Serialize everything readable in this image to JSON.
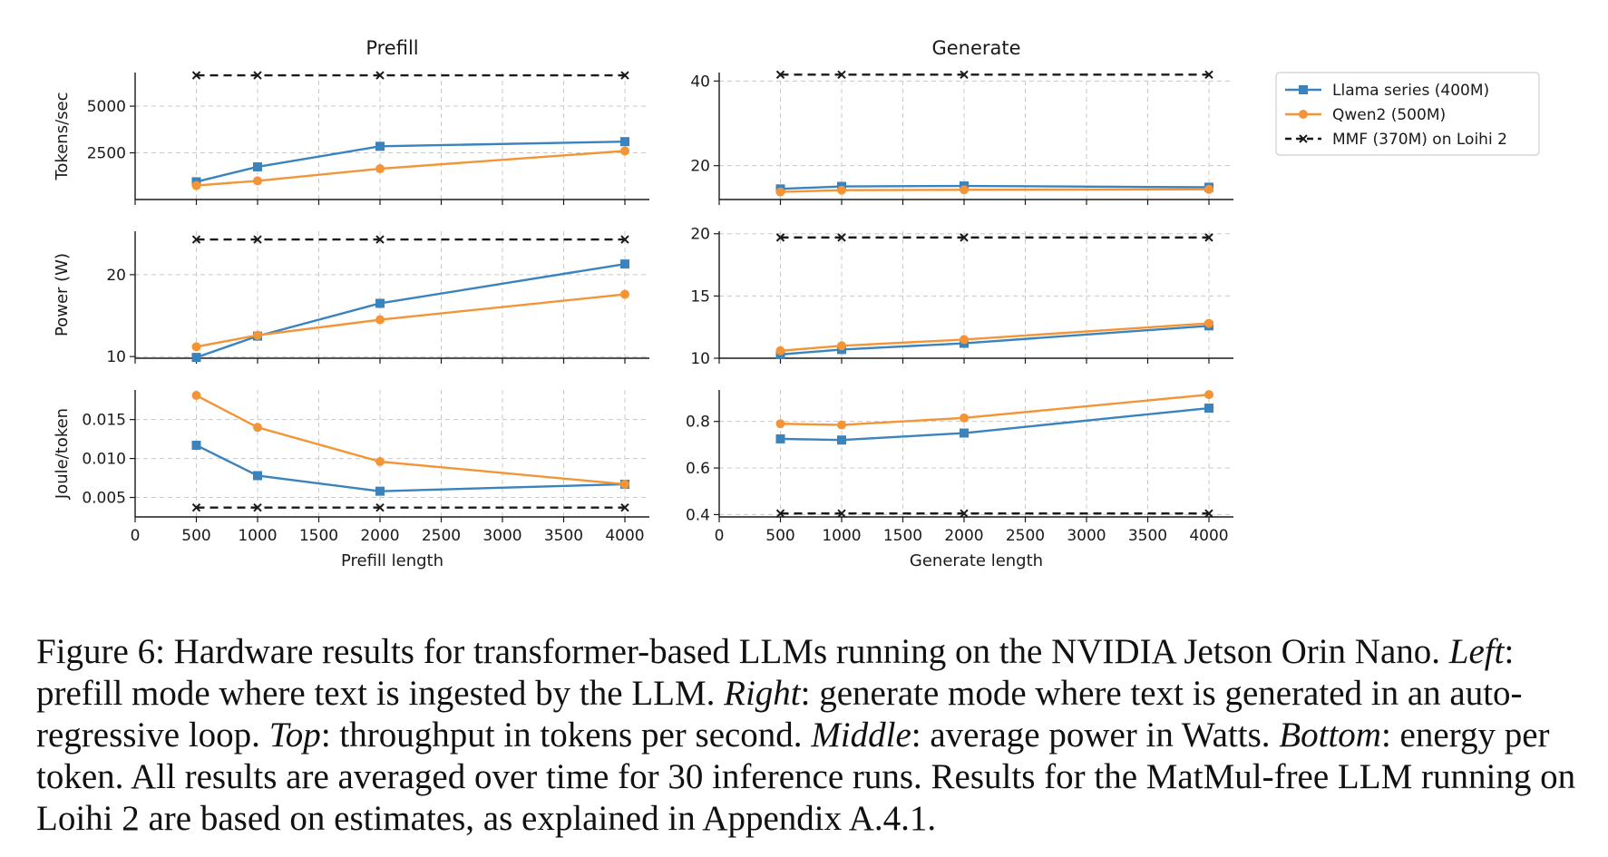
{
  "chart_data": [
    {
      "type": "line",
      "panel": "prefill-tokens",
      "title": "Prefill",
      "xlabel": "",
      "ylabel": "Tokens/sec",
      "xlim": [
        0,
        4200
      ],
      "ylim": [
        0,
        6800
      ],
      "grid": true,
      "x_ticks": [],
      "y_ticks": [
        2500,
        5000
      ],
      "series": [
        {
          "name": "Llama series (400M)",
          "x": [
            500,
            1000,
            2000,
            4000
          ],
          "values": [
            950,
            1750,
            2850,
            3100
          ]
        },
        {
          "name": "Qwen2 (500M)",
          "x": [
            500,
            1000,
            2000,
            4000
          ],
          "values": [
            750,
            1000,
            1650,
            2600
          ]
        },
        {
          "name": "MMF (370M) on Loihi 2",
          "x": [
            500,
            1000,
            2000,
            4000
          ],
          "values": [
            6650,
            6650,
            6650,
            6650
          ]
        }
      ]
    },
    {
      "type": "line",
      "panel": "generate-tokens",
      "title": "Generate",
      "xlabel": "",
      "ylabel": "",
      "xlim": [
        0,
        4200
      ],
      "ylim": [
        12,
        42
      ],
      "grid": true,
      "x_ticks": [],
      "y_ticks": [
        20,
        40
      ],
      "series": [
        {
          "name": "Llama series (400M)",
          "x": [
            500,
            1000,
            2000,
            4000
          ],
          "values": [
            14.5,
            15.1,
            15.2,
            14.9
          ]
        },
        {
          "name": "Qwen2 (500M)",
          "x": [
            500,
            1000,
            2000,
            4000
          ],
          "values": [
            13.8,
            14.2,
            14.3,
            14.4
          ]
        },
        {
          "name": "MMF (370M) on Loihi 2",
          "x": [
            500,
            1000,
            2000,
            4000
          ],
          "values": [
            41.5,
            41.5,
            41.5,
            41.5
          ]
        }
      ]
    },
    {
      "type": "line",
      "panel": "prefill-power",
      "title": "",
      "xlabel": "",
      "ylabel": "Power (W)",
      "xlim": [
        0,
        4200
      ],
      "ylim": [
        9.8,
        25.3
      ],
      "grid": true,
      "x_ticks": [],
      "y_ticks": [
        10,
        20
      ],
      "series": [
        {
          "name": "Llama series (400M)",
          "x": [
            500,
            1000,
            2000,
            4000
          ],
          "values": [
            9.9,
            12.5,
            16.5,
            21.3
          ]
        },
        {
          "name": "Qwen2 (500M)",
          "x": [
            500,
            1000,
            2000,
            4000
          ],
          "values": [
            11.2,
            12.6,
            14.5,
            17.6
          ]
        },
        {
          "name": "MMF (370M) on Loihi 2",
          "x": [
            500,
            1000,
            2000,
            4000
          ],
          "values": [
            24.3,
            24.3,
            24.3,
            24.3
          ]
        }
      ]
    },
    {
      "type": "line",
      "panel": "generate-power",
      "title": "",
      "xlabel": "",
      "ylabel": "",
      "xlim": [
        0,
        4200
      ],
      "ylim": [
        10,
        20.2
      ],
      "grid": true,
      "x_ticks": [],
      "y_ticks": [
        10,
        15,
        20
      ],
      "series": [
        {
          "name": "Llama series (400M)",
          "x": [
            500,
            1000,
            2000,
            4000
          ],
          "values": [
            10.3,
            10.7,
            11.2,
            12.6
          ]
        },
        {
          "name": "Qwen2 (500M)",
          "x": [
            500,
            1000,
            2000,
            4000
          ],
          "values": [
            10.6,
            11.0,
            11.5,
            12.8
          ]
        },
        {
          "name": "MMF (370M) on Loihi 2",
          "x": [
            500,
            1000,
            2000,
            4000
          ],
          "values": [
            19.7,
            19.7,
            19.7,
            19.7
          ]
        }
      ]
    },
    {
      "type": "line",
      "panel": "prefill-energy",
      "title": "",
      "xlabel": "Prefill length",
      "ylabel": "Joule/token",
      "xlim": [
        0,
        4200
      ],
      "ylim": [
        0.0025,
        0.0188
      ],
      "grid": true,
      "x_ticks": [
        0,
        500,
        1000,
        1500,
        2000,
        2500,
        3000,
        3500,
        4000
      ],
      "y_ticks": [
        0.005,
        0.01,
        0.015
      ],
      "y_tick_labels": [
        "0.005",
        "0.010",
        "0.015"
      ],
      "series": [
        {
          "name": "Llama series (400M)",
          "x": [
            500,
            1000,
            2000,
            4000
          ],
          "values": [
            0.0117,
            0.0078,
            0.0058,
            0.0067
          ]
        },
        {
          "name": "Qwen2 (500M)",
          "x": [
            500,
            1000,
            2000,
            4000
          ],
          "values": [
            0.0181,
            0.014,
            0.0096,
            0.0067
          ]
        },
        {
          "name": "MMF (370M) on Loihi 2",
          "x": [
            500,
            1000,
            2000,
            4000
          ],
          "values": [
            0.0037,
            0.0037,
            0.0037,
            0.0037
          ]
        }
      ]
    },
    {
      "type": "line",
      "panel": "generate-energy",
      "title": "",
      "xlabel": "Generate length",
      "ylabel": "",
      "xlim": [
        0,
        4200
      ],
      "ylim": [
        0.39,
        0.935
      ],
      "grid": true,
      "x_ticks": [
        0,
        500,
        1000,
        1500,
        2000,
        2500,
        3000,
        3500,
        4000
      ],
      "y_ticks": [
        0.4,
        0.6,
        0.8
      ],
      "y_tick_labels": [
        "0.4",
        "0.6",
        "0.8"
      ],
      "series": [
        {
          "name": "Llama series (400M)",
          "x": [
            500,
            1000,
            2000,
            4000
          ],
          "values": [
            0.725,
            0.72,
            0.75,
            0.857
          ]
        },
        {
          "name": "Qwen2 (500M)",
          "x": [
            500,
            1000,
            2000,
            4000
          ],
          "values": [
            0.79,
            0.785,
            0.815,
            0.915
          ]
        },
        {
          "name": "MMF (370M) on Loihi 2",
          "x": [
            500,
            1000,
            2000,
            4000
          ],
          "values": [
            0.405,
            0.405,
            0.405,
            0.405
          ]
        }
      ]
    }
  ],
  "legend": {
    "placement": "right",
    "entries": [
      {
        "label": "Llama series (400M)",
        "color": "#3a83bd",
        "marker": "square",
        "dashed": false
      },
      {
        "label": "Qwen2 (500M)",
        "color": "#f39437",
        "marker": "circle",
        "dashed": false
      },
      {
        "label": "MMF (370M) on Loihi 2",
        "color": "#1a1a1a",
        "marker": "x",
        "dashed": true
      }
    ]
  },
  "caption": {
    "figure_label": "Figure 6",
    "lead": ": Hardware results for transformer-based LLMs running on the NVIDIA Jetson Orin Nano.",
    "left_term": "Left",
    "left_text": ": prefill mode where text is ingested by the LLM.",
    "right_term": "Right",
    "right_text": ": generate mode where text is generated in an auto-regressive loop.",
    "top_term": "Top",
    "top_text": ": throughput in tokens per second.",
    "middle_term": "Middle",
    "middle_text": ": average power in Watts.",
    "bottom_term": "Bottom",
    "bottom_text": ": energy per token. All results are averaged over time for 30 inference runs. Results for the MatMul-free LLM running on Loihi 2 are based on estimates, as explained in Appendix A.4.1."
  }
}
